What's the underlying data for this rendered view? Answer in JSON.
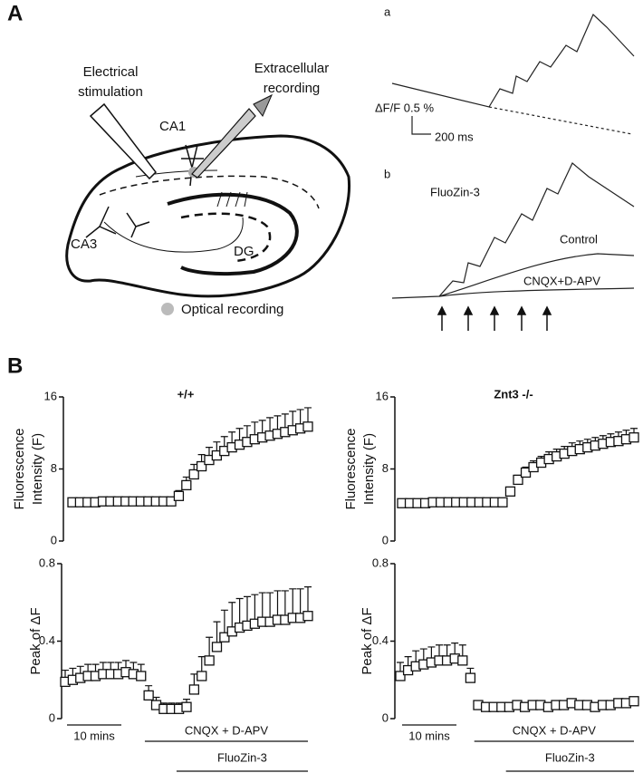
{
  "panel_labels": [
    "A",
    "B"
  ],
  "diagram": {
    "stimulation": [
      "Electrical",
      "stimulation"
    ],
    "recording": [
      "Extracellular",
      "recording"
    ],
    "ca1": "CA1",
    "ca3": "CA3",
    "dg": "DG",
    "optical": "Optical recording"
  },
  "traces": {
    "a": {
      "label": "a",
      "scale_y": "ΔF/F 0.5 %",
      "scale_x": "200 ms"
    },
    "b": {
      "label": "b",
      "fluozin": "FluoZin-3",
      "control": "Control",
      "cnqx": "CNQX+D-APV"
    }
  },
  "chart_data": [
    {
      "type": "errorbar",
      "title": "+/+",
      "y_label": [
        "Fluorescence",
        "Intensity (F)"
      ],
      "ylim": [
        0,
        16
      ],
      "yticks": [
        0,
        8,
        16
      ],
      "values": [
        4.3,
        4.3,
        4.3,
        4.3,
        4.4,
        4.4,
        4.4,
        4.4,
        4.4,
        4.4,
        4.4,
        4.4,
        4.4,
        4.4,
        5.0,
        6.2,
        7.4,
        8.3,
        9.0,
        9.5,
        10.0,
        10.4,
        10.7,
        11.0,
        11.3,
        11.5,
        11.7,
        11.9,
        12.1,
        12.3,
        12.5,
        12.7
      ],
      "errors": [
        0.3,
        0.3,
        0.3,
        0.3,
        0.3,
        0.3,
        0.3,
        0.3,
        0.3,
        0.3,
        0.3,
        0.3,
        0.3,
        0.3,
        0.6,
        0.9,
        1.1,
        1.3,
        1.4,
        1.5,
        1.6,
        1.7,
        1.8,
        1.8,
        1.9,
        1.9,
        2.0,
        2.0,
        2.0,
        2.1,
        2.1,
        2.1
      ]
    },
    {
      "type": "errorbar",
      "y_label": [
        "Peak of ΔF"
      ],
      "ylim": [
        0,
        0.8
      ],
      "yticks": [
        0,
        0.4,
        0.8
      ],
      "values": [
        0.19,
        0.2,
        0.21,
        0.22,
        0.22,
        0.23,
        0.23,
        0.23,
        0.24,
        0.23,
        0.22,
        0.12,
        0.07,
        0.05,
        0.05,
        0.05,
        0.06,
        0.15,
        0.22,
        0.3,
        0.37,
        0.42,
        0.45,
        0.47,
        0.48,
        0.49,
        0.5,
        0.5,
        0.51,
        0.51,
        0.52,
        0.52,
        0.53
      ],
      "errors": [
        0.06,
        0.06,
        0.06,
        0.06,
        0.06,
        0.06,
        0.06,
        0.06,
        0.06,
        0.06,
        0.06,
        0.05,
        0.04,
        0.03,
        0.03,
        0.03,
        0.04,
        0.08,
        0.1,
        0.12,
        0.13,
        0.14,
        0.15,
        0.15,
        0.15,
        0.15,
        0.15,
        0.15,
        0.15,
        0.15,
        0.15,
        0.15,
        0.15
      ],
      "annotations": [
        "10 mins",
        "CNQX + D-APV",
        "FluoZin-3"
      ]
    },
    {
      "type": "errorbar",
      "title": "Znt3 -/-",
      "y_label": [
        "Fluorescence",
        "Intensity (F)"
      ],
      "ylim": [
        0,
        16
      ],
      "yticks": [
        0,
        8,
        16
      ],
      "values": [
        4.2,
        4.2,
        4.2,
        4.2,
        4.3,
        4.3,
        4.3,
        4.3,
        4.3,
        4.3,
        4.3,
        4.3,
        4.3,
        4.3,
        5.5,
        6.8,
        7.6,
        8.2,
        8.7,
        9.1,
        9.4,
        9.7,
        10.0,
        10.2,
        10.4,
        10.6,
        10.8,
        11.0,
        11.1,
        11.3,
        11.5
      ],
      "errors": [
        0.3,
        0.3,
        0.3,
        0.3,
        0.3,
        0.3,
        0.3,
        0.3,
        0.3,
        0.3,
        0.3,
        0.3,
        0.3,
        0.3,
        0.4,
        0.5,
        0.6,
        0.7,
        0.7,
        0.8,
        0.8,
        0.8,
        0.9,
        0.9,
        0.9,
        0.9,
        0.9,
        0.9,
        1.0,
        1.0,
        1.0
      ]
    },
    {
      "type": "errorbar",
      "y_label": [
        "Peak of ΔF"
      ],
      "ylim": [
        0,
        0.8
      ],
      "yticks": [
        0,
        0.4,
        0.8
      ],
      "values": [
        0.22,
        0.25,
        0.27,
        0.28,
        0.29,
        0.3,
        0.3,
        0.31,
        0.3,
        0.21,
        0.07,
        0.06,
        0.06,
        0.06,
        0.06,
        0.07,
        0.06,
        0.07,
        0.07,
        0.06,
        0.07,
        0.07,
        0.08,
        0.07,
        0.07,
        0.06,
        0.07,
        0.07,
        0.08,
        0.08,
        0.09
      ],
      "errors": [
        0.07,
        0.07,
        0.08,
        0.08,
        0.08,
        0.08,
        0.08,
        0.08,
        0.08,
        0.05,
        0.02,
        0.02,
        0.02,
        0.02,
        0.02,
        0.02,
        0.02,
        0.02,
        0.02,
        0.02,
        0.02,
        0.02,
        0.02,
        0.02,
        0.02,
        0.02,
        0.02,
        0.02,
        0.02,
        0.02,
        0.02
      ],
      "annotations": [
        "10 mins",
        "CNQX + D-APV",
        "FluoZin-3"
      ]
    }
  ]
}
